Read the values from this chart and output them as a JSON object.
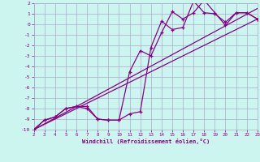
{
  "xlabel": "Windchill (Refroidissement éolien,°C)",
  "bg_color": "#cdf5ef",
  "grid_color": "#aaaacc",
  "line_color": "#880088",
  "xmin": 2,
  "xmax": 23,
  "ymin": -10,
  "ymax": 2,
  "yticks": [
    -10,
    -9,
    -8,
    -7,
    -6,
    -5,
    -4,
    -3,
    -2,
    -1,
    0,
    1,
    2
  ],
  "xticks": [
    2,
    3,
    4,
    5,
    6,
    7,
    8,
    9,
    10,
    11,
    12,
    13,
    14,
    15,
    16,
    17,
    18,
    19,
    20,
    21,
    22,
    23
  ],
  "line1_x": [
    2,
    3,
    4,
    5,
    6,
    7,
    8,
    9,
    10,
    11,
    12,
    13,
    14,
    15,
    16,
    17,
    18,
    19,
    20,
    21,
    22,
    23
  ],
  "line1_y": [
    -10,
    -9.1,
    -8.8,
    -8.0,
    -7.8,
    -8.0,
    -9.0,
    -9.1,
    -9.1,
    -8.5,
    -8.3,
    -2.2,
    0.3,
    -0.5,
    -0.3,
    2.2,
    1.1,
    1.0,
    0.2,
    1.1,
    1.1,
    0.5
  ],
  "line2_x": [
    2,
    3,
    4,
    5,
    6,
    7,
    8,
    9,
    10,
    11,
    12,
    13,
    14,
    15,
    16,
    17,
    18,
    19,
    20,
    21,
    22,
    23
  ],
  "line2_y": [
    -10,
    -9.1,
    -8.8,
    -8.0,
    -7.8,
    -7.8,
    -9.0,
    -9.1,
    -9.1,
    -4.5,
    -2.5,
    -3.0,
    -0.8,
    1.2,
    0.5,
    1.1,
    2.3,
    1.1,
    -0.1,
    1.1,
    1.1,
    0.5
  ],
  "line3_x": [
    2,
    23
  ],
  "line3_y": [
    -10,
    0.5
  ],
  "line4_x": [
    2,
    23
  ],
  "line4_y": [
    -10,
    1.5
  ]
}
